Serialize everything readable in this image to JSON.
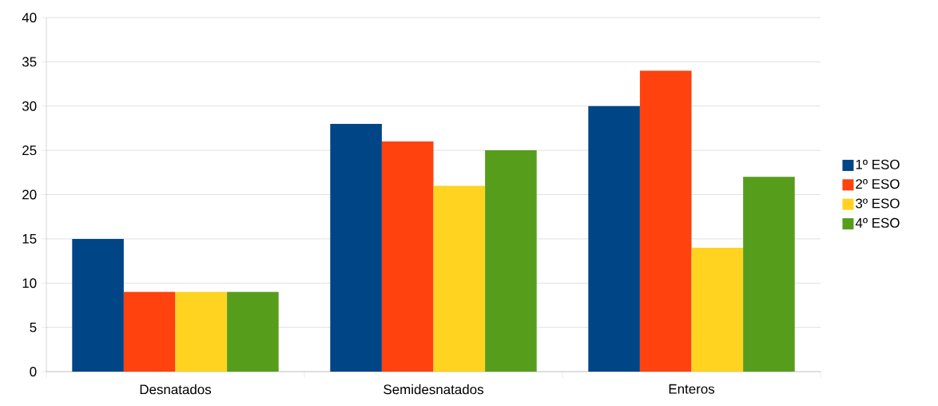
{
  "chart_data": {
    "type": "bar",
    "categories": [
      "Desnatados",
      "Semidesnatados",
      "Enteros"
    ],
    "series": [
      {
        "name": "1º ESO",
        "color": "#004586",
        "values": [
          15,
          28,
          30
        ]
      },
      {
        "name": "2º ESO",
        "color": "#ff420e",
        "values": [
          9,
          26,
          34
        ]
      },
      {
        "name": "3º ESO",
        "color": "#ffd320",
        "values": [
          9,
          21,
          14
        ]
      },
      {
        "name": "4º ESO",
        "color": "#579d1c",
        "values": [
          9,
          25,
          22
        ]
      }
    ],
    "ylim": [
      0,
      40
    ],
    "yticks": [
      0,
      5,
      10,
      15,
      20,
      25,
      30,
      35,
      40
    ],
    "grid": "y",
    "legend": "right"
  }
}
